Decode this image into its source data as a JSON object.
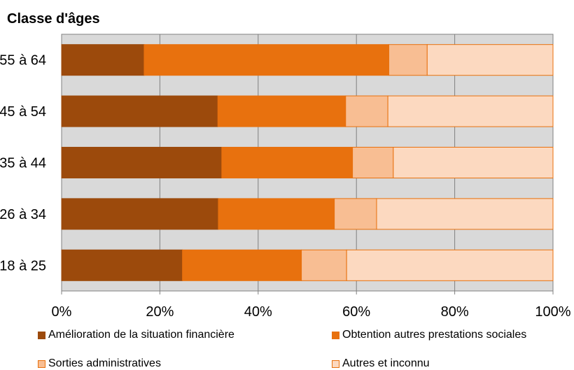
{
  "chart_data": {
    "type": "bar",
    "orientation": "horizontal",
    "stacked": true,
    "title": "Classe d'âges",
    "xlabel": "",
    "ylabel": "",
    "xlim": [
      0,
      100
    ],
    "x_ticks": [
      "0%",
      "20%",
      "40%",
      "60%",
      "80%",
      "100%"
    ],
    "grid": true,
    "legend_position": "bottom",
    "categories": [
      "55 à 64",
      "45 à 54",
      "35 à 44",
      "26 à 34",
      "18 à 25"
    ],
    "series": [
      {
        "name": "Amélioration de la situation financière",
        "color": "#9C4A0C",
        "values": [
          16.8,
          31.8,
          32.6,
          31.9,
          24.6
        ]
      },
      {
        "name": "Obtention autres prestations sociales",
        "color": "#E8710E",
        "values": [
          49.8,
          26.0,
          26.6,
          23.6,
          24.2
        ]
      },
      {
        "name": "Sorties administratives",
        "color": "#F8BE93",
        "values": [
          7.8,
          8.6,
          8.3,
          8.6,
          9.2
        ]
      },
      {
        "name": "Autres et inconnu",
        "color": "#FCD9C0",
        "values": [
          25.6,
          33.6,
          32.5,
          35.9,
          42.0
        ]
      }
    ]
  }
}
